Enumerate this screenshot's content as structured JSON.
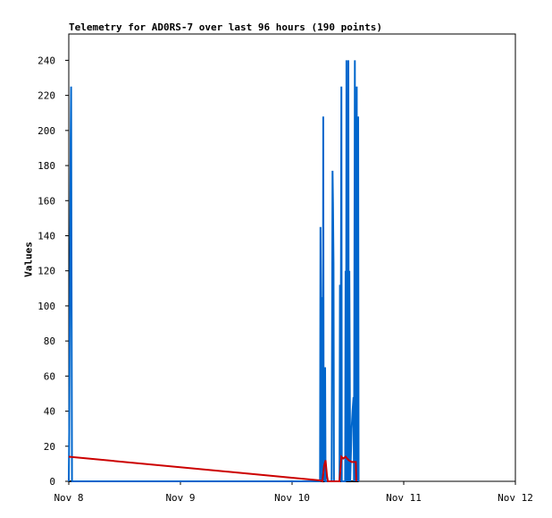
{
  "chart_data": {
    "type": "line",
    "title": "Telemetry for AD0RS-7 over last 96 hours (190 points)",
    "xlabel": "",
    "ylabel": "Values",
    "x_ticks": [
      "Nov 8",
      "Nov 9",
      "Nov 10",
      "Nov 11",
      "Nov 12"
    ],
    "y_ticks": [
      0,
      20,
      40,
      60,
      80,
      100,
      120,
      140,
      160,
      180,
      200,
      220,
      240
    ],
    "ylim": [
      0,
      255
    ],
    "xlim_hours": [
      0,
      96
    ],
    "grid": false,
    "legend": "none",
    "series": [
      {
        "color": "#0066cc",
        "points": [
          [
            0,
            0
          ],
          [
            0.1,
            28
          ],
          [
            0.2,
            84
          ],
          [
            0.3,
            140
          ],
          [
            0.4,
            196
          ],
          [
            0.5,
            225
          ],
          [
            0.6,
            112
          ],
          [
            0.7,
            0
          ],
          [
            54.0,
            0
          ],
          [
            54.1,
            145
          ],
          [
            54.2,
            108
          ],
          [
            54.3,
            0
          ],
          [
            54.5,
            105
          ],
          [
            54.6,
            0
          ],
          [
            54.7,
            208
          ],
          [
            54.8,
            0
          ],
          [
            54.9,
            40
          ],
          [
            55.0,
            0
          ],
          [
            55.1,
            65
          ],
          [
            55.2,
            0
          ],
          [
            56.5,
            0
          ],
          [
            56.6,
            88
          ],
          [
            56.7,
            177
          ],
          [
            56.8,
            158
          ],
          [
            56.9,
            124
          ],
          [
            57.0,
            0
          ],
          [
            58.2,
            0
          ],
          [
            58.3,
            112
          ],
          [
            58.4,
            0
          ],
          [
            58.6,
            225
          ],
          [
            58.7,
            0
          ],
          [
            59.4,
            0
          ],
          [
            59.5,
            120
          ],
          [
            59.6,
            0
          ],
          [
            59.7,
            240
          ],
          [
            59.8,
            0
          ],
          [
            59.9,
            177
          ],
          [
            60.0,
            0
          ],
          [
            60.1,
            240
          ],
          [
            60.2,
            0
          ],
          [
            60.3,
            120
          ],
          [
            60.5,
            0
          ],
          [
            60.6,
            10
          ],
          [
            60.8,
            30
          ],
          [
            61.0,
            40
          ],
          [
            61.2,
            48
          ],
          [
            61.3,
            0
          ],
          [
            61.5,
            240
          ],
          [
            61.6,
            0
          ],
          [
            61.7,
            208
          ],
          [
            61.8,
            0
          ],
          [
            61.9,
            225
          ],
          [
            62.0,
            0
          ],
          [
            62.2,
            208
          ],
          [
            62.3,
            0
          ]
        ],
        "values_note": "Blue spikes read approximately from chart"
      },
      {
        "color": "#cc0000",
        "points": [
          [
            0,
            14
          ],
          [
            54.0,
            0.5
          ],
          [
            54.5,
            0
          ],
          [
            54.9,
            9
          ],
          [
            55.2,
            12
          ],
          [
            55.5,
            3
          ],
          [
            55.7,
            0
          ],
          [
            56.3,
            0
          ],
          [
            58.2,
            0
          ],
          [
            58.6,
            14
          ],
          [
            59.0,
            13
          ],
          [
            59.5,
            14
          ],
          [
            59.8,
            13
          ],
          [
            60.2,
            12
          ],
          [
            60.8,
            11
          ],
          [
            61.4,
            11
          ],
          [
            61.7,
            11
          ],
          [
            61.8,
            0
          ]
        ]
      }
    ]
  }
}
